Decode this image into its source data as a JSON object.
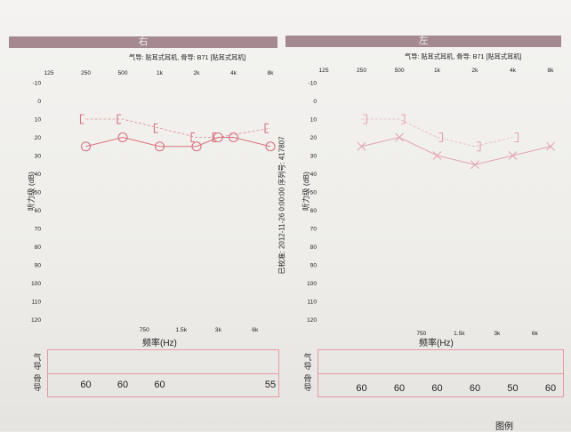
{
  "chart_data": [
    {
      "type": "line",
      "ear_label": "右",
      "header": "气导: 贴耳式耳机, 骨导: B71 [贴耳式耳机]",
      "freq_labels_top": [
        "125",
        "250",
        "500",
        "1k",
        "2k",
        "4k",
        "8k"
      ],
      "freq_labels_bottom": [
        "750",
        "1.5k",
        "3k",
        "6k"
      ],
      "ylabel": "听力级 (dB)",
      "xlabel": "频率(Hz)",
      "ylim": [
        -10,
        120
      ],
      "y_ticks": [
        "-10",
        "0",
        "10",
        "20",
        "30",
        "40",
        "50",
        "60",
        "70",
        "80",
        "90",
        "100",
        "110",
        "120"
      ],
      "air_conduction": {
        "x": [
          250,
          500,
          1000,
          2000,
          3000,
          4000,
          8000
        ],
        "y": [
          25,
          20,
          25,
          25,
          20,
          20,
          25
        ],
        "marker": "circle",
        "color": "#d9707e"
      },
      "bone_conduction": {
        "x": [
          250,
          500,
          1000,
          2000,
          3000,
          8000
        ],
        "y": [
          10,
          10,
          15,
          20,
          20,
          15
        ],
        "marker": "bracket-left",
        "color": "#d9707e"
      },
      "table_labels": {
        "row1": "气导",
        "row2": "骨导"
      },
      "bone_table_values": [
        {
          "x": 250,
          "value": "60"
        },
        {
          "x": 500,
          "value": "60"
        },
        {
          "x": 1000,
          "value": "60"
        },
        {
          "x": 8000,
          "value": "55"
        }
      ]
    },
    {
      "type": "line",
      "ear_label": "左",
      "header": "气导: 贴耳式耳机, 骨导: B71 [贴耳式耳机]",
      "freq_labels_top": [
        "125",
        "250",
        "500",
        "1k",
        "2k",
        "4k",
        "8k"
      ],
      "freq_labels_bottom": [
        "750",
        "1.5k",
        "3k",
        "6k"
      ],
      "ylabel": "听力级 (dB)",
      "xlabel": "频率(Hz)",
      "ylim": [
        -10,
        120
      ],
      "y_ticks": [
        "-10",
        "0",
        "10",
        "20",
        "30",
        "40",
        "50",
        "60",
        "70",
        "80",
        "90",
        "100",
        "110",
        "120"
      ],
      "air_conduction": {
        "x": [
          250,
          500,
          1000,
          2000,
          4000,
          8000
        ],
        "y": [
          25,
          20,
          30,
          35,
          30,
          25
        ],
        "marker": "x",
        "color": "#e3a4b0"
      },
      "bone_conduction": {
        "x": [
          250,
          500,
          1000,
          2000,
          4000
        ],
        "y": [
          10,
          10,
          20,
          25,
          20
        ],
        "marker": "bracket-right",
        "color": "#e3a4b0"
      },
      "table_labels": {
        "row1": "气导",
        "row2": "骨导"
      },
      "bone_table_values": [
        {
          "x": 250,
          "value": "60"
        },
        {
          "x": 500,
          "value": "60"
        },
        {
          "x": 1000,
          "value": "60"
        },
        {
          "x": 2000,
          "value": "60"
        },
        {
          "x": 4000,
          "value": "50"
        },
        {
          "x": 8000,
          "value": "60"
        }
      ]
    }
  ],
  "calibration_note": "已校准: 2012-11-26 0:00:00 序列号: 417807",
  "legend": "图例"
}
